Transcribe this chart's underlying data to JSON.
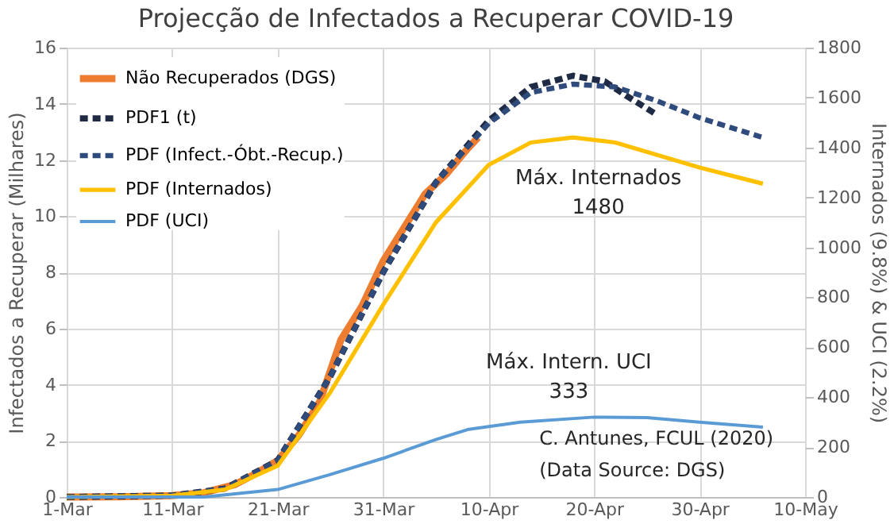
{
  "chart_data": {
    "type": "line",
    "title": "Projecção de Infectados a Recuperar COVID-19",
    "ylabel": "Infectados a Recuperar (Milhares)",
    "y2label": "Internados (9.8%) & UCI (2.2%)",
    "xlim": [
      "2020-03-01",
      "2020-05-10"
    ],
    "xticks": [
      {
        "value": "2020-03-01",
        "label": "1-Mar"
      },
      {
        "value": "2020-03-11",
        "label": "11-Mar"
      },
      {
        "value": "2020-03-21",
        "label": "21-Mar"
      },
      {
        "value": "2020-03-31",
        "label": "31-Mar"
      },
      {
        "value": "2020-04-10",
        "label": "10-Apr"
      },
      {
        "value": "2020-04-20",
        "label": "20-Apr"
      },
      {
        "value": "2020-04-30",
        "label": "30-Apr"
      },
      {
        "value": "2020-05-10",
        "label": "10-May"
      }
    ],
    "ylim": [
      0,
      16
    ],
    "yticks": [
      0,
      2,
      4,
      6,
      8,
      10,
      12,
      14,
      16
    ],
    "y2lim": [
      0,
      1800
    ],
    "y2ticks": [
      0,
      200,
      400,
      600,
      800,
      1000,
      1200,
      1400,
      1600,
      1800
    ],
    "grid": true,
    "legend": "top left",
    "marker": "none",
    "series": [
      {
        "name": "Não Recuperados (DGS)",
        "color": "#ed7d31",
        "line_style": "solid",
        "x": [
          "2020-03-01",
          "2020-03-06",
          "2020-03-11",
          "2020-03-14",
          "2020-03-17",
          "2020-03-19",
          "2020-03-21",
          "2020-03-23",
          "2020-03-25",
          "2020-03-27",
          "2020-03-29",
          "2020-03-31",
          "2020-04-02",
          "2020-04-04",
          "2020-04-06",
          "2020-04-08",
          "2020-04-09"
        ],
        "values": [
          0,
          0.01,
          0.05,
          0.15,
          0.45,
          0.85,
          1.3,
          2.2,
          3.4,
          5.6,
          6.8,
          8.4,
          9.6,
          10.8,
          11.5,
          12.4,
          12.8
        ]
      },
      {
        "name": "PDF1 (t)",
        "color": "#1f2a44",
        "line_style": "dashed",
        "x": [
          "2020-03-01",
          "2020-03-11",
          "2020-03-16",
          "2020-03-21",
          "2020-03-26",
          "2020-03-31",
          "2020-04-05",
          "2020-04-10",
          "2020-04-14",
          "2020-04-18",
          "2020-04-21",
          "2020-04-23",
          "2020-04-26"
        ],
        "values": [
          0,
          0.05,
          0.3,
          1.3,
          4.3,
          8.0,
          11.2,
          13.4,
          14.6,
          15.0,
          14.8,
          14.3,
          13.6
        ]
      },
      {
        "name": "PDF (Infect.-Óbt.-Recup.)",
        "color": "#2f4b7c",
        "line_style": "dashed",
        "x": [
          "2020-03-01",
          "2020-03-11",
          "2020-03-16",
          "2020-03-21",
          "2020-03-26",
          "2020-03-31",
          "2020-04-05",
          "2020-04-10",
          "2020-04-14",
          "2020-04-18",
          "2020-04-22",
          "2020-04-26",
          "2020-04-30",
          "2020-05-06"
        ],
        "values": [
          0,
          0.05,
          0.3,
          1.3,
          4.3,
          8.0,
          11.2,
          13.3,
          14.4,
          14.7,
          14.6,
          14.1,
          13.5,
          12.8
        ]
      },
      {
        "name": "PDF (Internados)",
        "color": "#ffc000",
        "line_style": "solid",
        "axis": "y2",
        "x": [
          "2020-03-01",
          "2020-03-11",
          "2020-03-16",
          "2020-03-21",
          "2020-03-26",
          "2020-03-31",
          "2020-04-05",
          "2020-04-10",
          "2020-04-14",
          "2020-04-18",
          "2020-04-22",
          "2020-04-26",
          "2020-04-30",
          "2020-05-06"
        ],
        "values": [
          0,
          5,
          30,
          125,
          420,
          770,
          1100,
          1330,
          1420,
          1440,
          1420,
          1370,
          1320,
          1255
        ]
      },
      {
        "name": "PDF (UCI)",
        "color": "#5b9bd5",
        "line_style": "solid",
        "axis": "y2",
        "x": [
          "2020-03-01",
          "2020-03-14",
          "2020-03-21",
          "2020-03-26",
          "2020-03-31",
          "2020-04-05",
          "2020-04-08",
          "2020-04-13",
          "2020-04-20",
          "2020-04-25",
          "2020-04-30",
          "2020-05-06"
        ],
        "values": [
          0,
          0,
          30,
          90,
          155,
          230,
          270,
          300,
          320,
          318,
          300,
          280
        ]
      }
    ],
    "annotations": [
      "Máx. Internados",
      "1480",
      "Máx. Intern. UCI",
      "333",
      "C. Antunes, FCUL (2020)",
      "(Data Source: DGS)"
    ]
  }
}
